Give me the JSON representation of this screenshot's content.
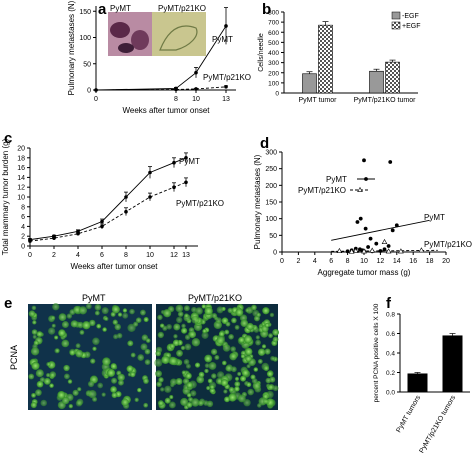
{
  "panels": {
    "a": {
      "letter": "a",
      "inset_labels": [
        "PyMT",
        "PyMT/p21KO"
      ]
    },
    "b": {
      "letter": "b"
    },
    "c": {
      "letter": "c"
    },
    "d": {
      "letter": "d"
    },
    "e": {
      "letter": "e",
      "labels": [
        "PyMT",
        "PyMT/p21KO"
      ],
      "ylabel": "PCNA"
    },
    "f": {
      "letter": "f"
    }
  },
  "chart_data": [
    {
      "id": "a",
      "type": "line",
      "title": "",
      "xlabel": "Weeks after tumor onset",
      "ylabel": "Pulmonary metastases (N)",
      "x": [
        0,
        8,
        10,
        13
      ],
      "xticks": [
        0,
        8,
        10,
        13
      ],
      "yticks": [
        0,
        50,
        100,
        150
      ],
      "xlim": [
        0,
        14
      ],
      "ylim": [
        0,
        160
      ],
      "series": [
        {
          "name": "PyMT",
          "style": "solid",
          "values": [
            0,
            3,
            33,
            122
          ],
          "errors": [
            0,
            2,
            10,
            35
          ]
        },
        {
          "name": "PyMT/p21KO",
          "style": "dashed",
          "values": [
            0,
            1,
            2,
            6
          ],
          "errors": [
            0,
            1,
            1,
            2
          ]
        }
      ]
    },
    {
      "id": "b",
      "type": "bar",
      "title": "",
      "ylabel": "Cells/needle",
      "categories": [
        "PyMT tumor",
        "PyMT/p21KO tumor"
      ],
      "yticks": [
        0,
        100,
        200,
        300,
        400,
        500,
        600,
        700,
        800
      ],
      "ylim": [
        0,
        800
      ],
      "legend": "top-right",
      "series": [
        {
          "name": "-EGF",
          "color": "#999999",
          "values": [
            190,
            215
          ],
          "errors": [
            20,
            20
          ]
        },
        {
          "name": "+EGF",
          "color": "#dcdcdc",
          "values": [
            670,
            305
          ],
          "errors": [
            35,
            20
          ]
        }
      ]
    },
    {
      "id": "c",
      "type": "line",
      "title": "",
      "xlabel": "Weeks after tumor onset",
      "ylabel": "Total mammary tumor burden (g)",
      "x": [
        0,
        2,
        4,
        6,
        8,
        10,
        12,
        13
      ],
      "xticks": [
        0,
        2,
        4,
        6,
        8,
        10,
        12,
        13
      ],
      "yticks": [
        0,
        2,
        4,
        6,
        8,
        10,
        12,
        14,
        16,
        18,
        20
      ],
      "xlim": [
        0,
        14
      ],
      "ylim": [
        0,
        20
      ],
      "series": [
        {
          "name": "PyMT",
          "style": "solid",
          "values": [
            1.3,
            2,
            3,
            5,
            10,
            15,
            17,
            18
          ],
          "errors": [
            0.2,
            0.2,
            0.3,
            0.5,
            1,
            1.2,
            1,
            1
          ]
        },
        {
          "name": "PyMT/p21KO",
          "style": "dashed",
          "values": [
            1,
            1.6,
            2.5,
            4,
            7,
            10,
            12,
            13
          ],
          "errors": [
            0.2,
            0.2,
            0.3,
            0.5,
            0.8,
            0.8,
            0.9,
            0.9
          ]
        }
      ]
    },
    {
      "id": "d",
      "type": "scatter",
      "title": "",
      "xlabel": "Aggregate tumor mass (g)",
      "ylabel": "Pulmonary metastases (N)",
      "xticks": [
        0,
        2,
        4,
        6,
        8,
        10,
        12,
        14,
        16,
        18,
        20
      ],
      "yticks": [
        0,
        50,
        100,
        150,
        200,
        250,
        300
      ],
      "xlim": [
        0,
        20
      ],
      "ylim": [
        0,
        300
      ],
      "series": [
        {
          "name": "PyMT",
          "marker": "filled",
          "line": "solid",
          "points": [
            [
              8.5,
              5
            ],
            [
              9,
              10
            ],
            [
              9.5,
              8
            ],
            [
              10,
              3
            ],
            [
              10.5,
              15
            ],
            [
              11,
              2
            ],
            [
              9.2,
              90
            ],
            [
              9.6,
              100
            ],
            [
              10.2,
              70
            ],
            [
              10,
              275
            ],
            [
              12.5,
              8
            ],
            [
              13,
              18
            ],
            [
              13.5,
              65
            ],
            [
              14,
              80
            ],
            [
              13.2,
              270
            ],
            [
              8,
              2
            ],
            [
              11.5,
              25
            ],
            [
              10.8,
              40
            ],
            [
              9.8,
              5
            ],
            [
              12,
              3
            ]
          ],
          "fit": [
            [
              6,
              35
            ],
            [
              18,
              95
            ]
          ]
        },
        {
          "name": "PyMT/p21KO",
          "marker": "open-triangle",
          "line": "dashed",
          "points": [
            [
              7,
              3
            ],
            [
              9,
              3
            ],
            [
              10,
              2
            ],
            [
              11,
              4
            ],
            [
              12.5,
              30
            ],
            [
              13,
              2
            ],
            [
              14.5,
              2
            ],
            [
              17,
              5
            ],
            [
              8.5,
              1
            ]
          ],
          "fit": [
            [
              6,
              2
            ],
            [
              19,
              5
            ]
          ]
        }
      ]
    },
    {
      "id": "f",
      "type": "bar",
      "title": "",
      "ylabel": "percent PCNA positive cells X 100",
      "categories": [
        "PyMT tumors",
        "PyMT/p21KO tumors"
      ],
      "yticks": [
        0.0,
        0.2,
        0.4,
        0.6,
        0.8
      ],
      "ylim": [
        0,
        0.8
      ],
      "series": [
        {
          "name": "",
          "color": "#000000",
          "values": [
            0.19,
            0.58
          ],
          "errors": [
            0.01,
            0.02
          ]
        }
      ]
    }
  ]
}
